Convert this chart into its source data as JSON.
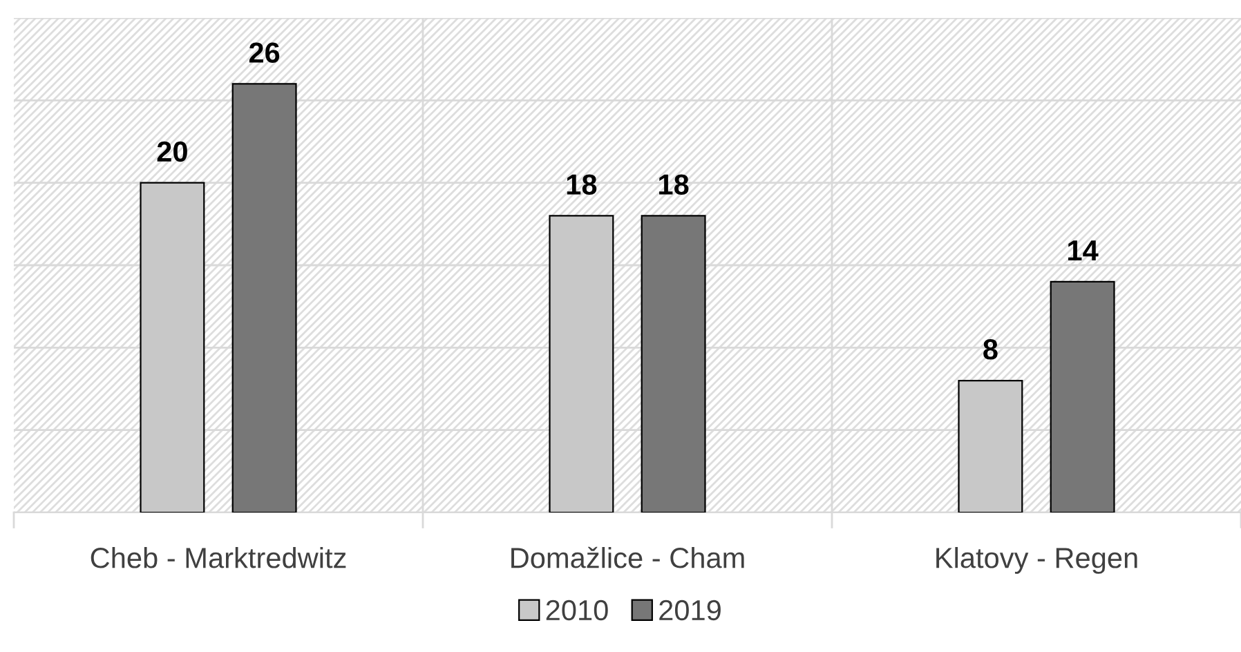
{
  "chart_data": {
    "type": "bar",
    "categories": [
      "Cheb - Marktredwitz",
      "Domažlice - Cham",
      "Klatovy - Regen"
    ],
    "series": [
      {
        "name": "2010",
        "color": "#c8c8c8",
        "values": [
          20,
          18,
          8
        ]
      },
      {
        "name": "2019",
        "color": "#777777",
        "values": [
          26,
          18,
          14
        ]
      }
    ],
    "ylim": [
      0,
      30
    ],
    "yticks": [
      {
        "value": 0,
        "label": null
      },
      {
        "value": 5,
        "label": null
      },
      {
        "value": 10,
        "label": null
      },
      {
        "value": 15,
        "label": null
      },
      {
        "value": 20,
        "label": null
      },
      {
        "value": 25,
        "label": null
      },
      {
        "value": 30,
        "label": null
      }
    ],
    "tick_labels": "x",
    "grid": true,
    "legend": "bottom",
    "data_labels": true
  }
}
